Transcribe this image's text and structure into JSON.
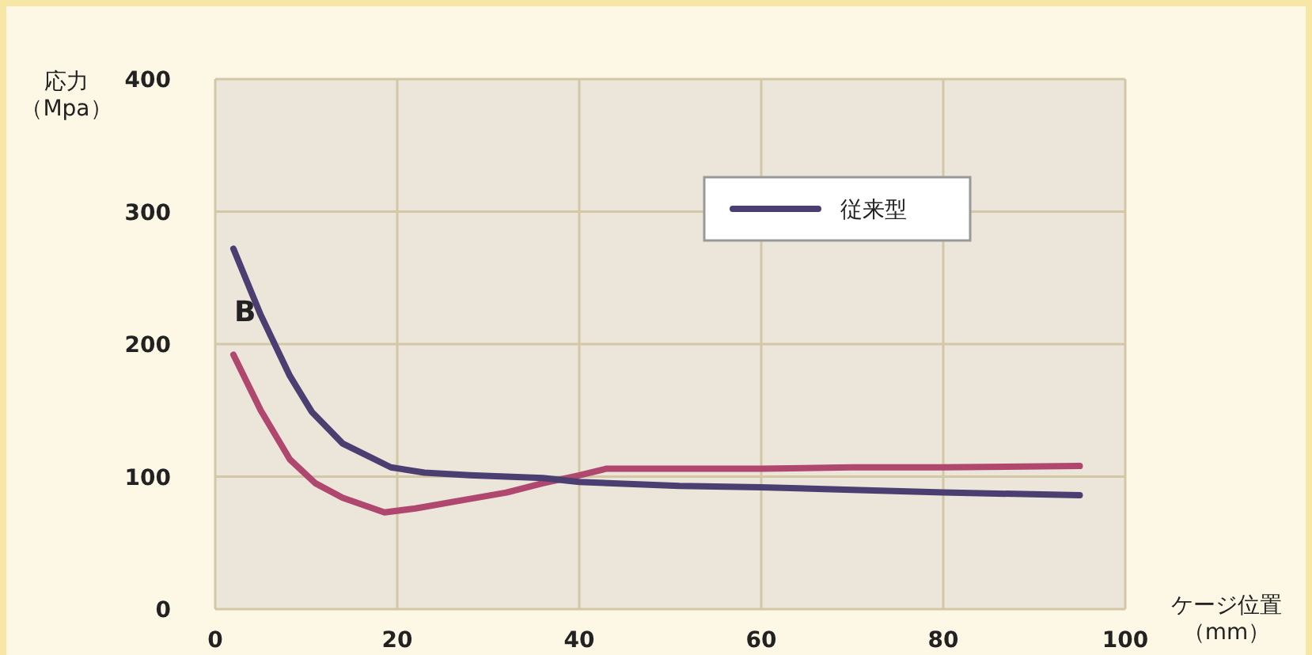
{
  "chart_data": {
    "type": "line",
    "xlabel": "ケージ位置（mm）",
    "ylabel": "応力（Mpa）",
    "annotations": [
      "B"
    ],
    "xlim": [
      0,
      100
    ],
    "ylim": [
      0,
      400
    ],
    "xticks": [
      0,
      20,
      40,
      60,
      80,
      100
    ],
    "yticks": [
      0,
      100,
      200,
      300,
      400
    ],
    "grid": true,
    "legend": "top right",
    "marker": "none",
    "line_style": "solid",
    "series": [
      {
        "color": "#b0476f",
        "x": [
          2,
          5,
          8.2,
          11,
          14,
          18.6,
          22,
          27,
          32,
          36,
          40,
          43,
          50,
          60,
          70,
          80,
          95
        ],
        "values": [
          192,
          150,
          113,
          95,
          84,
          73,
          76,
          82,
          88,
          95,
          101,
          106,
          106,
          106,
          107,
          107,
          108
        ]
      },
      {
        "name": "従来型",
        "color": "#4b3f72",
        "x": [
          2,
          5,
          8.2,
          10.6,
          14,
          19.3,
          23,
          28,
          36,
          40,
          51,
          60,
          70,
          80,
          95
        ],
        "values": [
          272,
          222,
          176,
          149,
          125,
          107,
          103,
          101,
          99,
          96,
          93,
          92,
          90,
          88,
          86
        ]
      }
    ]
  }
}
